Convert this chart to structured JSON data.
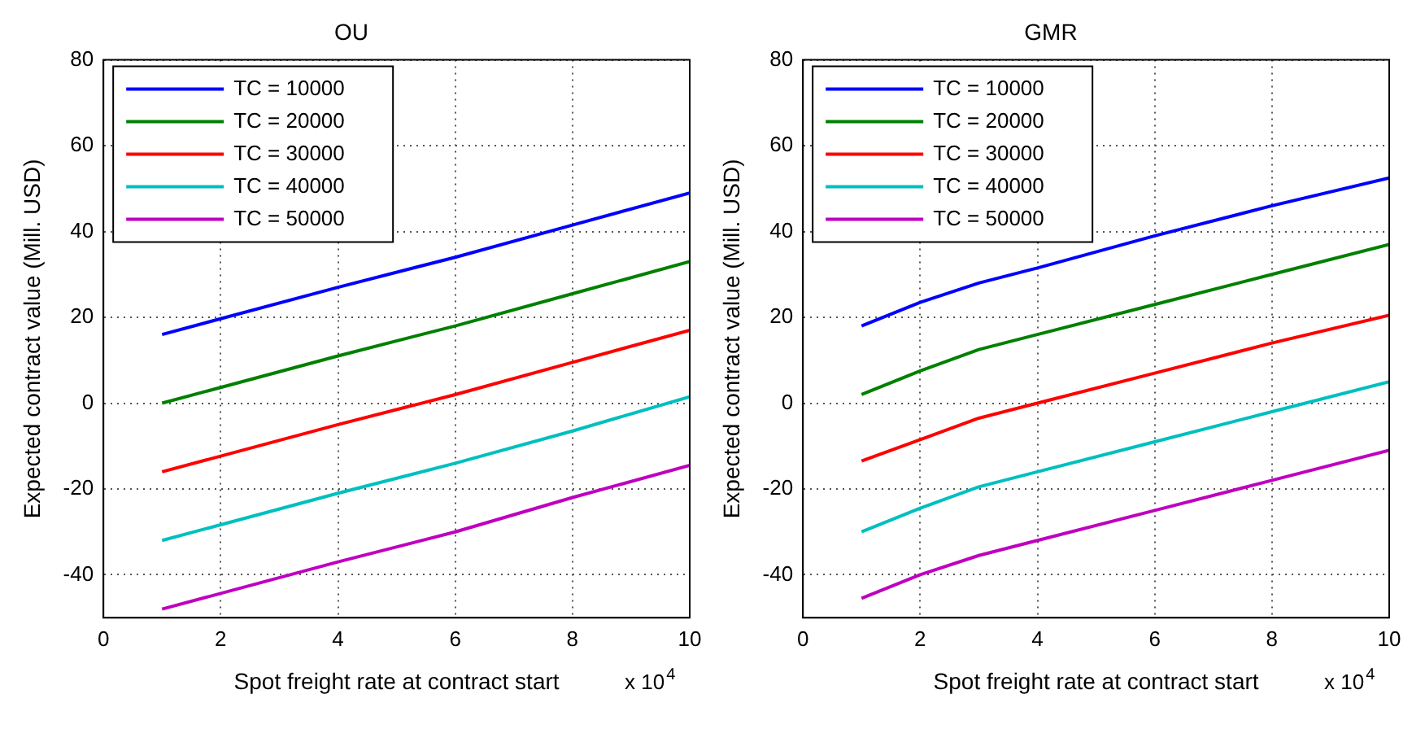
{
  "chart_data": [
    {
      "type": "line",
      "title": "OU",
      "xlabel": "Spot freight rate at contract start",
      "ylabel": "Expected contract value (Mill. USD)",
      "x": [
        1,
        4,
        6,
        8,
        10
      ],
      "xlim": [
        0,
        10
      ],
      "xticks": [
        0,
        2,
        4,
        6,
        8,
        10
      ],
      "ylim": [
        -50,
        80
      ],
      "yticks": [
        -40,
        -20,
        0,
        20,
        40,
        60,
        80
      ],
      "grid": true,
      "line_style": "solid",
      "marker": "none",
      "legend": "top left",
      "annotations": [
        "x 10$^{4}$"
      ],
      "series": [
        {
          "name": "TC = 10000",
          "color": "#0000ff",
          "values": [
            16,
            27,
            34,
            41.5,
            49
          ]
        },
        {
          "name": "TC = 20000",
          "color": "#008000",
          "values": [
            0,
            11,
            18,
            25.5,
            33
          ]
        },
        {
          "name": "TC = 30000",
          "color": "#ff0000",
          "values": [
            -16,
            -5,
            2,
            9.5,
            17
          ]
        },
        {
          "name": "TC = 40000",
          "color": "#00bfbf",
          "values": [
            -32,
            -21,
            -14,
            -6.5,
            1.5
          ]
        },
        {
          "name": "TC = 50000",
          "color": "#bf00bf",
          "values": [
            -48,
            -37,
            -30,
            -22,
            -14.5
          ]
        }
      ]
    },
    {
      "type": "line",
      "title": "GMR",
      "xlabel": "Spot freight rate at contract start",
      "ylabel": "Expected contract value (Mill. USD)",
      "x": [
        1,
        2,
        3,
        4,
        6,
        8,
        10
      ],
      "xlim": [
        0,
        10
      ],
      "xticks": [
        0,
        2,
        4,
        6,
        8,
        10
      ],
      "ylim": [
        -50,
        80
      ],
      "yticks": [
        -40,
        -20,
        0,
        20,
        40,
        60,
        80
      ],
      "grid": true,
      "line_style": "solid",
      "marker": "none",
      "legend": "top left",
      "annotations": [
        "x 10$^{4}$"
      ],
      "series": [
        {
          "name": "TC = 10000",
          "color": "#0000ff",
          "values": [
            18,
            23.5,
            28,
            31.5,
            39,
            46,
            52.5
          ]
        },
        {
          "name": "TC = 20000",
          "color": "#008000",
          "values": [
            2,
            7.5,
            12.5,
            16,
            23,
            30,
            37
          ]
        },
        {
          "name": "TC = 30000",
          "color": "#ff0000",
          "values": [
            -13.5,
            -8.5,
            -3.5,
            0,
            7,
            14,
            20.5
          ]
        },
        {
          "name": "TC = 40000",
          "color": "#00bfbf",
          "values": [
            -30,
            -24.5,
            -19.5,
            -16,
            -9,
            -2,
            5
          ]
        },
        {
          "name": "TC = 50000",
          "color": "#bf00bf",
          "values": [
            -45.5,
            -40,
            -35.5,
            -32,
            -25,
            -18,
            -11
          ]
        }
      ]
    }
  ]
}
